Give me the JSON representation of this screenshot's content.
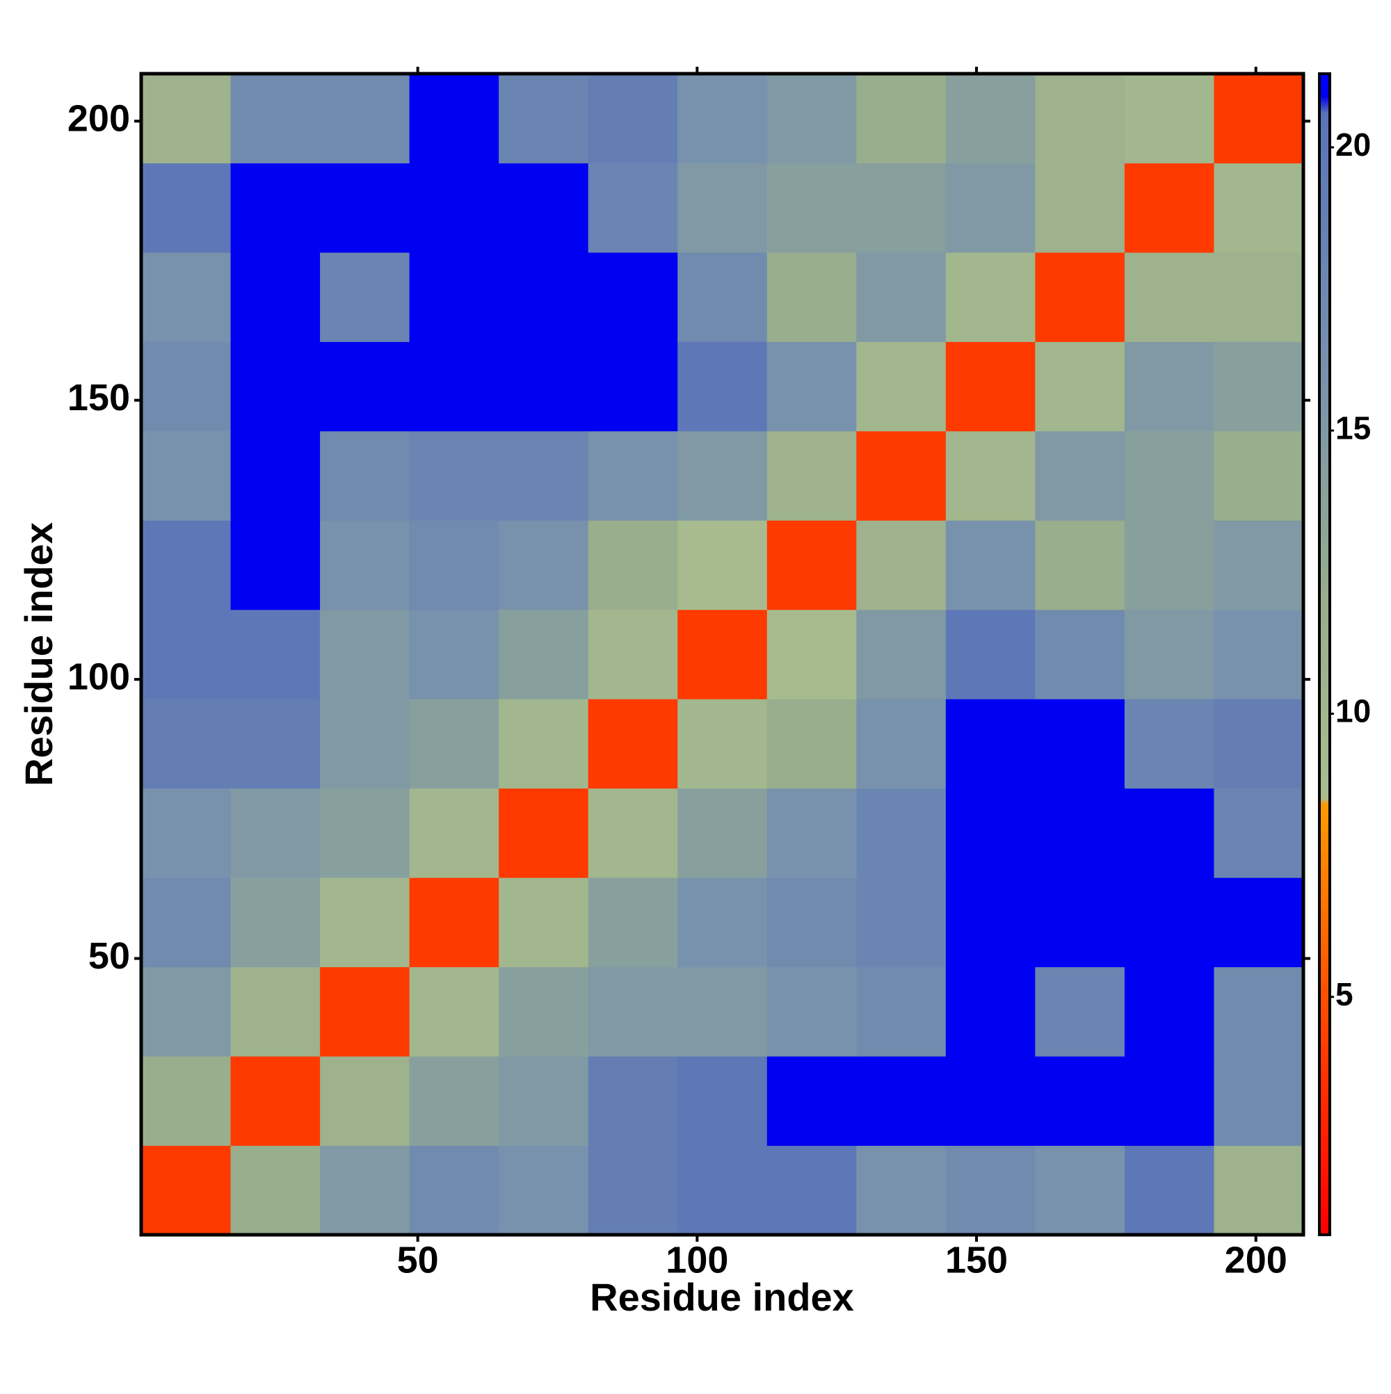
{
  "chart_data": {
    "type": "heatmap",
    "x_label": "Residue index",
    "y_label": "Residue index",
    "xbins": [
      0.5,
      16.5,
      32.5,
      48.5,
      64.5,
      80.5,
      96.5,
      112.5,
      128.5,
      144.5,
      160.5,
      176.5,
      192.5,
      208.5
    ],
    "ybins": [
      0.5,
      16.5,
      32.5,
      48.5,
      64.5,
      80.5,
      96.5,
      112.5,
      128.5,
      144.5,
      160.5,
      176.5,
      192.5,
      208.5
    ],
    "z": [
      [
        4,
        12,
        15,
        17,
        16,
        19,
        20,
        20,
        16,
        17,
        16,
        20,
        11
      ],
      [
        12,
        4,
        11,
        14,
        15,
        19,
        20,
        21,
        21,
        21,
        21,
        21,
        17
      ],
      [
        15,
        11,
        4,
        10,
        14,
        15,
        15,
        16,
        17,
        21,
        18,
        21,
        17
      ],
      [
        17,
        14,
        10,
        4,
        10,
        14,
        16,
        17,
        18,
        21,
        21,
        21,
        21
      ],
      [
        16,
        15,
        14,
        10,
        4,
        10,
        14,
        16,
        18,
        21,
        21,
        21,
        18
      ],
      [
        19,
        19,
        15,
        14,
        10,
        4,
        10,
        12,
        16,
        21,
        21,
        18,
        19
      ],
      [
        20,
        20,
        15,
        16,
        14,
        10,
        4,
        9,
        15,
        20,
        17,
        15,
        16
      ],
      [
        20,
        21,
        16,
        17,
        16,
        12,
        9,
        4,
        11,
        16,
        12,
        14,
        15
      ],
      [
        16,
        21,
        17,
        18,
        18,
        16,
        15,
        11,
        4,
        10,
        15,
        14,
        12
      ],
      [
        17,
        21,
        21,
        21,
        21,
        21,
        20,
        16,
        10,
        4,
        10,
        15,
        14
      ],
      [
        16,
        21,
        18,
        21,
        21,
        21,
        17,
        12,
        15,
        10,
        4,
        11,
        11
      ],
      [
        20,
        21,
        21,
        21,
        21,
        18,
        15,
        14,
        14,
        15,
        11,
        4,
        10
      ],
      [
        11,
        17,
        17,
        21,
        18,
        19,
        16,
        15,
        12,
        14,
        11,
        10,
        4
      ]
    ],
    "xlim": [
      0.5,
      208.5
    ],
    "xticks": [
      50,
      100,
      150,
      200
    ],
    "ylim": [
      0.5,
      208.5
    ],
    "yticks": [
      50,
      100,
      150,
      200
    ],
    "zlim": [
      0.8,
      21.3
    ],
    "zticks": [
      5,
      10,
      15,
      20
    ],
    "colorscale": [
      [
        0.8,
        "#ff0000"
      ],
      [
        4,
        "#ff3a00"
      ],
      [
        8.4,
        "#ff9a00"
      ],
      [
        8.5,
        "#a9bd8f"
      ],
      [
        12,
        "#98ae8c"
      ],
      [
        16,
        "#7892ad"
      ],
      [
        20.6,
        "#5a74b8"
      ],
      [
        20.9,
        "#0000ee"
      ],
      [
        21.3,
        "#0000ff"
      ]
    ]
  }
}
